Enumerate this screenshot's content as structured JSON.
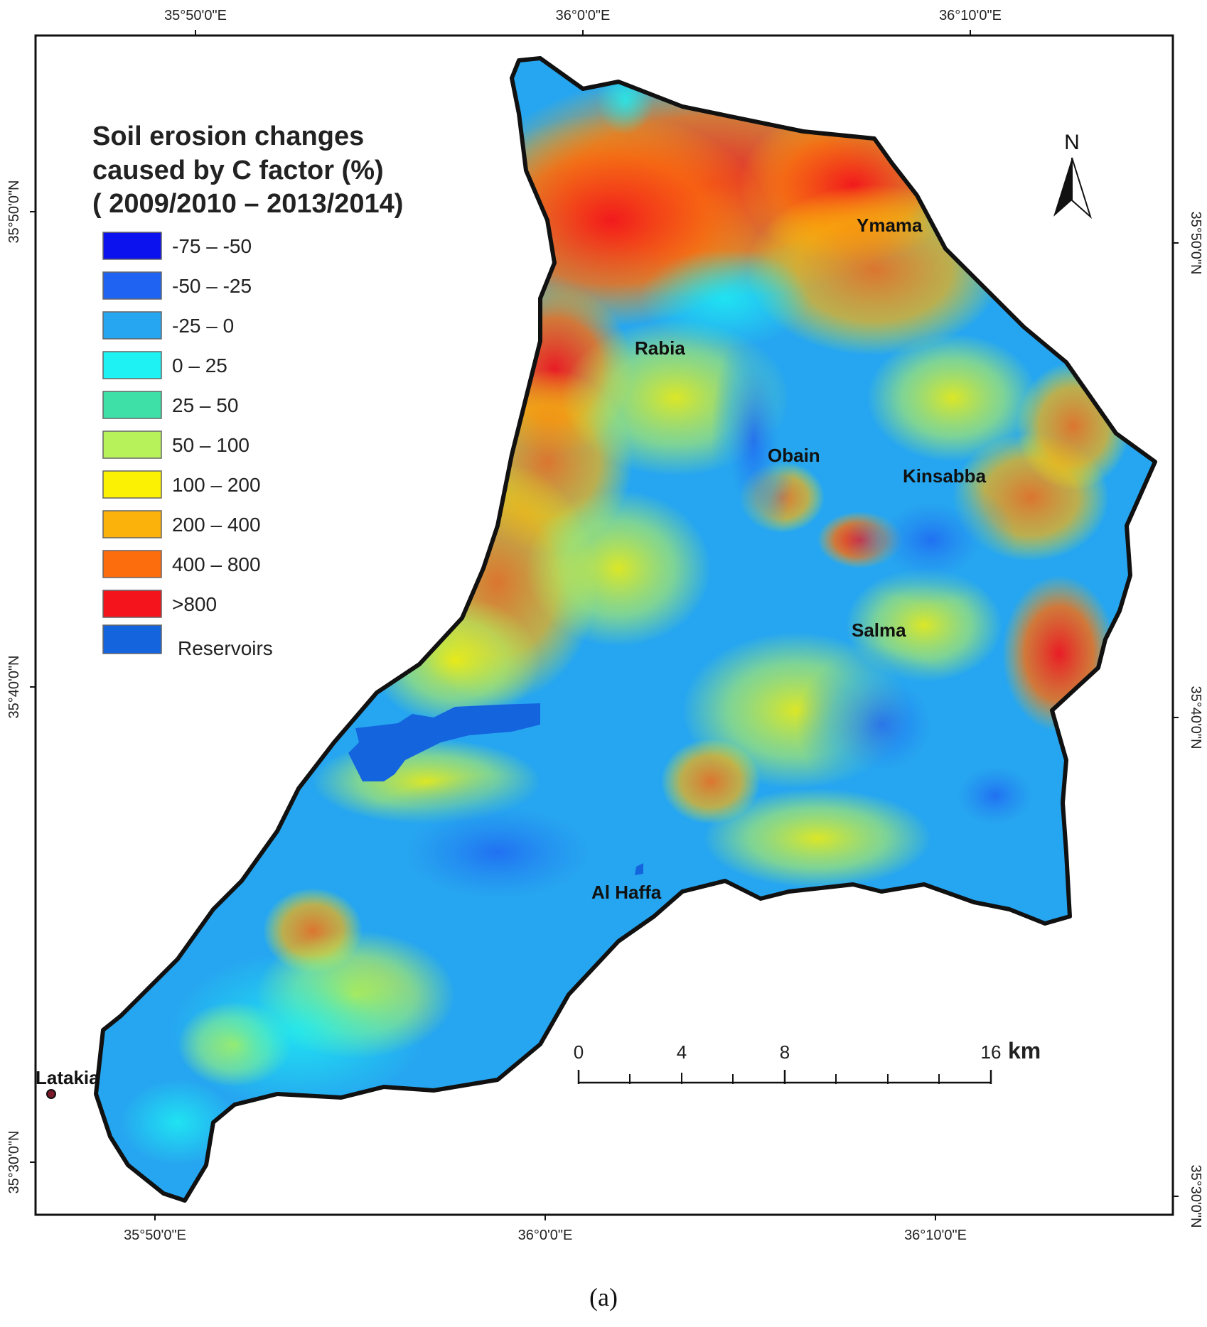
{
  "map": {
    "graticule": {
      "top": [
        "35°50'0\"E",
        "36°0'0\"E",
        "36°10'0\"E"
      ],
      "bottom": [
        "35°50'0\"E",
        "36°0'0\"E",
        "36°10'0\"E"
      ],
      "left": [
        "35°50'0\"N",
        "35°40'0\"N",
        "35°30'0\"N"
      ],
      "right": [
        "35°50'0\"N",
        "35°40'0\"N",
        "35°30'0\"N"
      ]
    },
    "places": {
      "ymama": "Ymama",
      "rabia": "Rabia",
      "obain": "Obain",
      "kinsabba": "Kinsabba",
      "salma": "Salma",
      "alhaffa": "Al Haffa",
      "latakia": "Latakia"
    },
    "north_label": "N",
    "legend": {
      "title_lines": [
        "Soil erosion  changes",
        "caused by C factor (%)",
        "( 2009/2010 – 2013/2014)"
      ],
      "items": [
        {
          "label": "-75 – -50",
          "color": "#0b12ee"
        },
        {
          "label": "-50 – -25",
          "color": "#1f63f2"
        },
        {
          "label": "-25 –  0",
          "color": "#26a6f0"
        },
        {
          "label": "0 – 25",
          "color": "#1ef2f2"
        },
        {
          "label": "25 – 50",
          "color": "#3ee0a8"
        },
        {
          "label": "50 – 100",
          "color": "#b8f25a"
        },
        {
          "label": "100 – 200",
          "color": "#fbf203"
        },
        {
          "label": "200 – 400",
          "color": "#fbb20a"
        },
        {
          "label": "400 – 800",
          "color": "#fb6d0d"
        },
        {
          "label": ">800",
          "color": "#f3151b"
        },
        {
          "label": "Reservoirs",
          "color": "#1464de"
        }
      ]
    },
    "scale_bar": {
      "ticks": [
        "0",
        "4",
        "8",
        "16"
      ],
      "unit": "km"
    },
    "caption": "(a)"
  }
}
